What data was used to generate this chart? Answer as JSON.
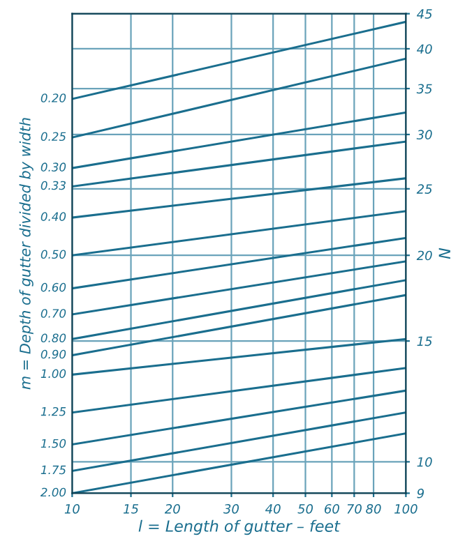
{
  "chart_data": {
    "type": "line",
    "xlabel": "l = Length of gutter – feet",
    "ylabel": "m = Depth of gutter divided by width",
    "y2label": "N",
    "x": [
      10,
      100
    ],
    "xlim": [
      10,
      100
    ],
    "xticks": [
      10,
      15,
      20,
      30,
      40,
      50,
      60,
      70,
      80,
      100
    ],
    "ylim": [
      9,
      45
    ],
    "yticks": [
      9,
      10,
      15,
      20,
      25,
      30,
      35,
      40,
      45
    ],
    "log": "xy",
    "grid": true,
    "legend": false,
    "marker": "none",
    "line_style": "solid",
    "series": [
      {
        "name": "0.20",
        "color": "#1a6e8e",
        "values": [
          33.8,
          43.8
        ]
      },
      {
        "name": "0.25",
        "color": "#1a6e8e",
        "values": [
          29.7,
          38.7
        ]
      },
      {
        "name": "0.30",
        "color": "#1a6e8e",
        "values": [
          26.8,
          32.3
        ]
      },
      {
        "name": "0.33",
        "color": "#1a6e8e",
        "values": [
          25.2,
          29.3
        ]
      },
      {
        "name": "0.40",
        "color": "#1a6e8e",
        "values": [
          22.7,
          25.9
        ]
      },
      {
        "name": "0.50",
        "color": "#1a6e8e",
        "values": [
          20.0,
          23.2
        ]
      },
      {
        "name": "0.60",
        "color": "#1a6e8e",
        "values": [
          17.9,
          21.2
        ]
      },
      {
        "name": "0.70",
        "color": "#1a6e8e",
        "values": [
          16.4,
          19.6
        ]
      },
      {
        "name": "0.80",
        "color": "#1a6e8e",
        "values": [
          15.1,
          18.4
        ]
      },
      {
        "name": "0.90",
        "color": "#1a6e8e",
        "values": [
          14.3,
          17.5
        ]
      },
      {
        "name": "1.00",
        "color": "#1a6e8e",
        "values": [
          13.4,
          15.1
        ]
      },
      {
        "name": "1.25",
        "color": "#1a6e8e",
        "values": [
          11.8,
          13.7
        ]
      },
      {
        "name": "1.50",
        "color": "#1a6e8e",
        "values": [
          10.6,
          12.7
        ]
      },
      {
        "name": "1.75",
        "color": "#1a6e8e",
        "values": [
          9.7,
          11.8
        ]
      },
      {
        "name": "2.00",
        "color": "#1a6e8e",
        "values": [
          9.0,
          11.0
        ]
      }
    ]
  }
}
